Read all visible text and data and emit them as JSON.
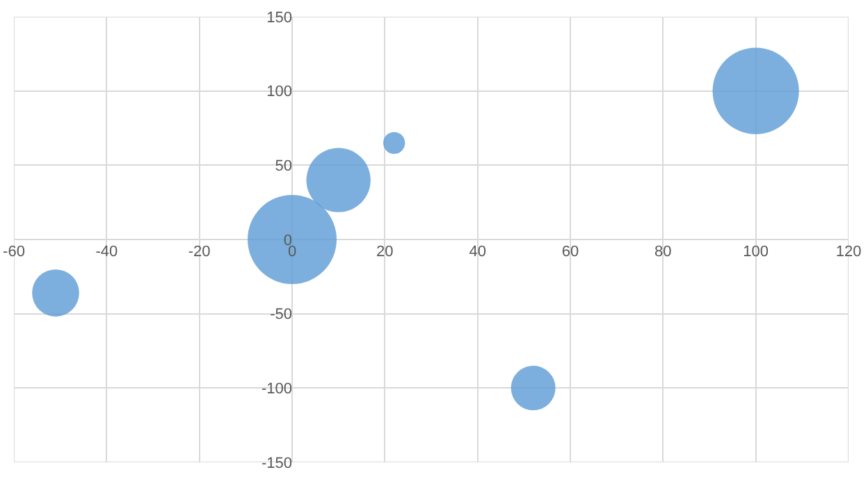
{
  "chart_data": {
    "type": "bubble",
    "x": [
      -51,
      0,
      10,
      22,
      52,
      100
    ],
    "values": [
      -36,
      0,
      40,
      65,
      -100,
      100
    ],
    "sizes": [
      0.28,
      1,
      0.52,
      0.06,
      0.25,
      0.94
    ],
    "color": "#5b9bd5",
    "xlim": [
      -60,
      120
    ],
    "xticks": [
      -60,
      -40,
      -20,
      0,
      20,
      40,
      60,
      80,
      100,
      120
    ],
    "ylim": [
      -150,
      150
    ],
    "yticks": [
      -150,
      -100,
      -50,
      0,
      50,
      100,
      150
    ],
    "grid": true
  }
}
